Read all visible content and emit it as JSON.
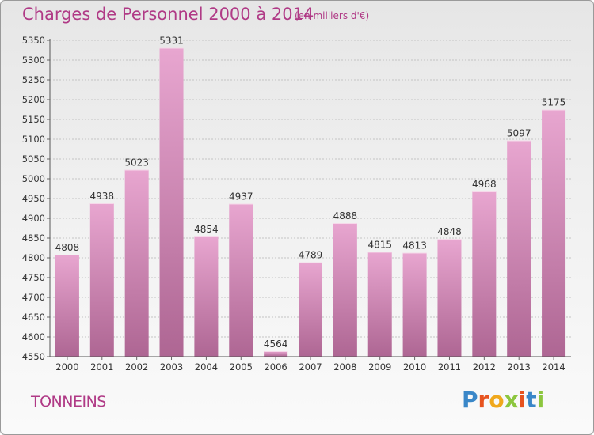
{
  "header": {
    "title": "Charges de Personnel 2000 à 2014",
    "subtitle": "(en milliers d'€)"
  },
  "footer": {
    "commune": "TONNEINS",
    "logo_text": "Proxiti",
    "logo_colors": [
      "#3a87c8",
      "#e7531f",
      "#f0a81c",
      "#8cc63e",
      "#e7531f",
      "#3a87c8",
      "#8cc63e"
    ]
  },
  "colors": {
    "accent": "#b03a86",
    "bar_top": "#e8a6d0",
    "bar_bottom": "#ae6693"
  },
  "chart_data": {
    "type": "bar",
    "categories": [
      "2000",
      "2001",
      "2002",
      "2003",
      "2004",
      "2005",
      "2006",
      "2007",
      "2008",
      "2009",
      "2010",
      "2011",
      "2012",
      "2013",
      "2014"
    ],
    "values": [
      4808,
      4938,
      5023,
      5331,
      4854,
      4937,
      4564,
      4789,
      4888,
      4815,
      4813,
      4848,
      4968,
      5097,
      5175
    ],
    "title": "Charges de Personnel 2000 à 2014",
    "subtitle": "(en milliers d'€)",
    "ylim": [
      4550,
      5350
    ],
    "yticks": [
      4550,
      4600,
      4650,
      4700,
      4750,
      4800,
      4850,
      4900,
      4950,
      5000,
      5050,
      5100,
      5150,
      5200,
      5250,
      5300,
      5350
    ],
    "grid": true,
    "data_labels": true
  }
}
